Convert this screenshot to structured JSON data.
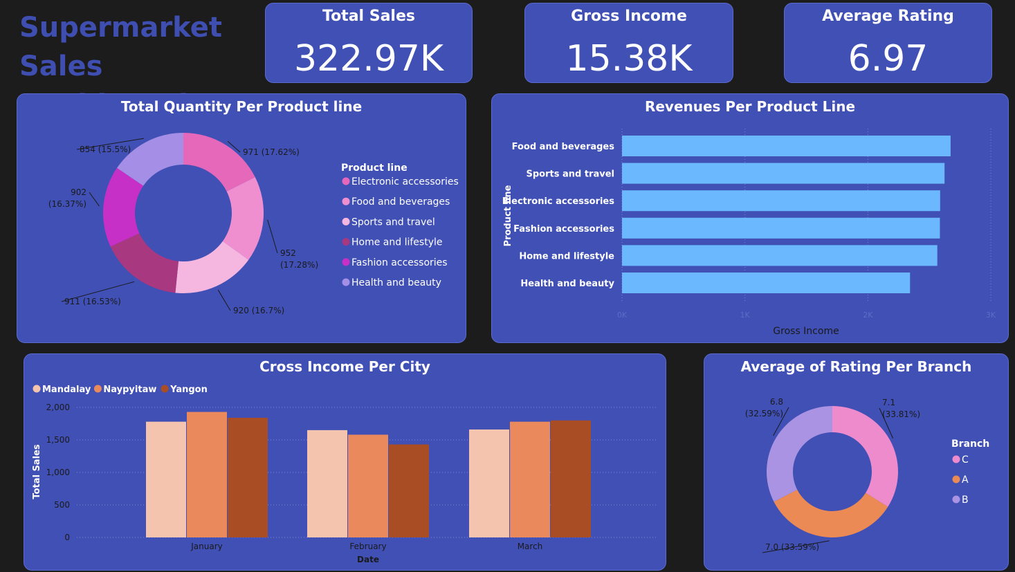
{
  "dashboard": {
    "title": "Supermarket Sales Dashboard"
  },
  "kpis": [
    {
      "label": "Total Sales",
      "value": "322.97K"
    },
    {
      "label": "Gross Income",
      "value": "15.38K"
    },
    {
      "label": "Average Rating",
      "value": "6.97"
    }
  ],
  "colors": {
    "background": "#1c1c1c",
    "card": "#4050b5",
    "title": "#3f4eb1",
    "bar": "#6cb8fe"
  },
  "chart_data": [
    {
      "type": "pie",
      "variant": "donut",
      "title": "Total Quantity Per Product line",
      "legend_title": "Product line",
      "legend_position": "right",
      "slices": [
        {
          "name": "Electronic accessories",
          "value": 971,
          "label": "971 (17.62%)",
          "color": "#e668bb"
        },
        {
          "name": "Food and beverages",
          "value": 952,
          "label": "952 (17.28%)",
          "color": "#f08fd0"
        },
        {
          "name": "Sports and travel",
          "value": 920,
          "label": "920 (16.7%)",
          "color": "#f5b6df"
        },
        {
          "name": "Home and lifestyle",
          "value": 911,
          "label": "911 (16.53%)",
          "color": "#a83880"
        },
        {
          "name": "Fashion accessories",
          "value": 902,
          "label": "902 (16.37%)",
          "color": "#c630c6"
        },
        {
          "name": "Health and beauty",
          "value": 854,
          "label": "854 (15.5%)",
          "color": "#a48ee6"
        }
      ]
    },
    {
      "type": "bar",
      "orientation": "horizontal",
      "title": "Revenues Per Product Line",
      "xlabel": "Gross Income",
      "ylabel": "Product line",
      "xlim": [
        0,
        3000
      ],
      "xticks": [
        "0K",
        "1K",
        "2K",
        "3K"
      ],
      "grid": true,
      "categories": [
        "Food and beverages",
        "Sports and travel",
        "Electronic accessories",
        "Fashion accessories",
        "Home and lifestyle",
        "Health and beauty"
      ],
      "values": [
        2673,
        2624,
        2588,
        2586,
        2565,
        2343
      ]
    },
    {
      "type": "bar",
      "title": "Cross Income Per City",
      "xlabel": "Date",
      "ylabel": "Total Sales",
      "ylim": [
        0,
        2000
      ],
      "yticks": [
        "0",
        "500",
        "1,000",
        "1,500",
        "2,000"
      ],
      "grid": true,
      "legend_position": "top-left",
      "categories": [
        "January",
        "February",
        "March"
      ],
      "series": [
        {
          "name": "Mandalay",
          "color": "#f5c4ae",
          "values": [
            1780,
            1650,
            1660
          ]
        },
        {
          "name": "Naypyitaw",
          "color": "#ea8a5c",
          "values": [
            1930,
            1580,
            1780
          ]
        },
        {
          "name": "Yangon",
          "color": "#a94d25",
          "values": [
            1840,
            1430,
            1800
          ]
        }
      ]
    },
    {
      "type": "pie",
      "variant": "donut",
      "title": "Average of Rating Per Branch",
      "legend_title": "Branch",
      "legend_position": "right",
      "slices": [
        {
          "name": "C",
          "value": 7.1,
          "label_value": "7.1",
          "label_pct": "(33.81%)",
          "color": "#ee8bcc"
        },
        {
          "name": "A",
          "value": 7.0,
          "label_value": "7.0",
          "label_pct": "(33.59%)",
          "color": "#ec8a56"
        },
        {
          "name": "B",
          "value": 6.8,
          "label_value": "6.8",
          "label_pct": "(32.59%)",
          "color": "#a993e2"
        }
      ]
    }
  ]
}
